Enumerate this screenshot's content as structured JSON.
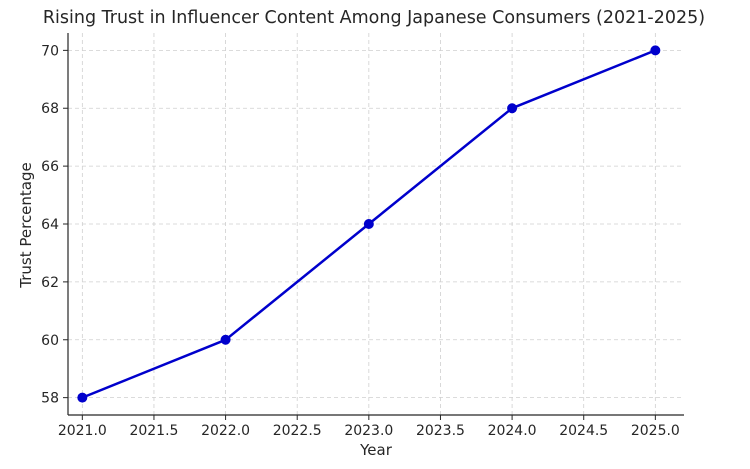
{
  "chart_data": {
    "type": "line",
    "title": "Rising Trust in Influencer Content Among Japanese Consumers (2021-2025)",
    "xlabel": "Year",
    "ylabel": "Trust Percentage",
    "x": [
      2021,
      2022,
      2023,
      2024,
      2025
    ],
    "series": [
      {
        "values": [
          58,
          60,
          64,
          68,
          70
        ],
        "color": "#0000cc"
      }
    ],
    "xlim": [
      2020.9,
      2025.2
    ],
    "ylim": [
      57.4,
      70.6
    ],
    "xticks": [
      "2021.0",
      "2021.5",
      "2022.0",
      "2022.5",
      "2023.0",
      "2023.5",
      "2024.0",
      "2024.5",
      "2025.0"
    ],
    "yticks": [
      "58",
      "60",
      "62",
      "64",
      "66",
      "68",
      "70"
    ],
    "grid": true,
    "marker": "circle",
    "legend": false
  }
}
